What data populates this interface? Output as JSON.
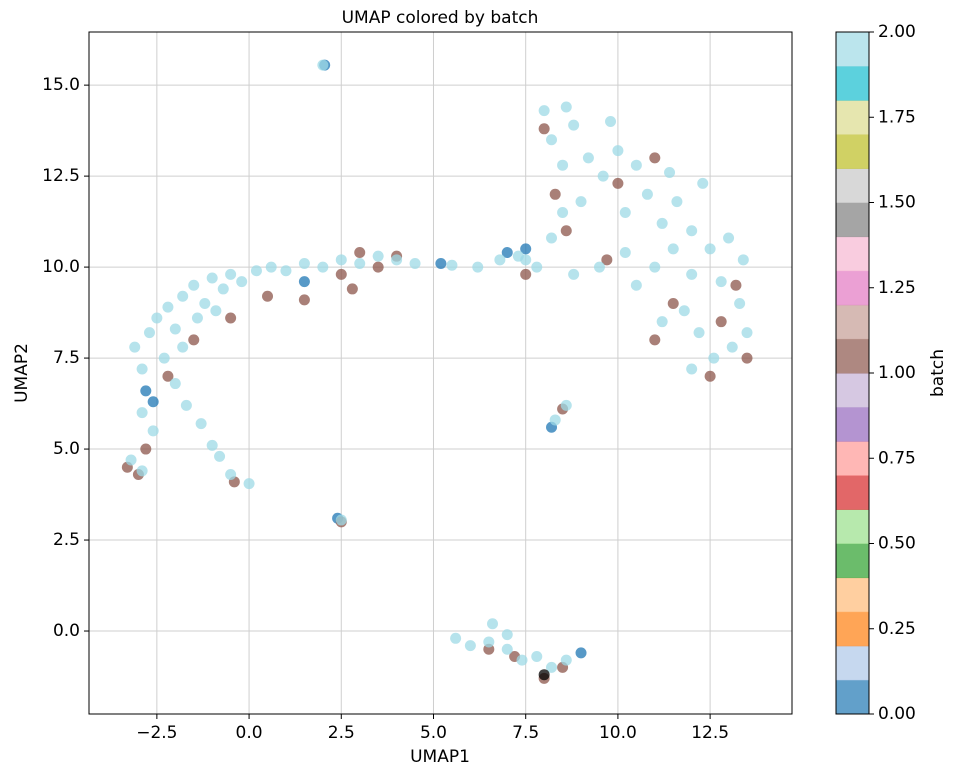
{
  "chart_data": {
    "type": "scatter",
    "title": "UMAP colored by batch",
    "xlabel": "UMAP1",
    "ylabel": "UMAP2",
    "xlim": [
      -4.34,
      14.72
    ],
    "ylim": [
      -2.28,
      16.46
    ],
    "xticks": [
      {
        "value": -2.5,
        "label": "−2.5"
      },
      {
        "value": 0,
        "label": "0.0"
      },
      2.5,
      {
        "value": 5,
        "label": "5.0"
      },
      7.5,
      {
        "value": 10,
        "label": "10.0"
      },
      12.5
    ],
    "yticks": [
      {
        "value": 0,
        "label": "0.0"
      },
      2.5,
      {
        "value": 5,
        "label": "5.0"
      },
      7.5,
      {
        "value": 10,
        "label": "10.0"
      },
      12.5,
      {
        "value": 15,
        "label": "15.0"
      }
    ],
    "grid": true,
    "colorbar": {
      "label": "batch",
      "clim": [
        0,
        2
      ],
      "ticks": [
        {
          "value": 0,
          "label": "0.00"
        },
        {
          "value": 0.25,
          "label": "0.25"
        },
        {
          "value": 0.5,
          "label": "0.50"
        },
        {
          "value": 0.75,
          "label": "0.75"
        },
        {
          "value": 1,
          "label": "1.00"
        },
        {
          "value": 1.25,
          "label": "1.25"
        },
        {
          "value": 1.5,
          "label": "1.50"
        },
        {
          "value": 1.75,
          "label": "1.75"
        },
        {
          "value": 2,
          "label": "2.00"
        }
      ],
      "colormap": [
        "#1f77b4",
        "#aec7e8",
        "#ff7f0e",
        "#ffbb78",
        "#2ca02c",
        "#98df8a",
        "#d62728",
        "#ff9896",
        "#9467bd",
        "#c5b0d5",
        "#8c564b",
        "#c49c94",
        "#e377c2",
        "#f7b6d2",
        "#7f7f7f",
        "#c7c7c7",
        "#bcbd22",
        "#dbdb8d",
        "#17becf",
        "#9edae5"
      ]
    },
    "x": [
      2.05,
      -2.8,
      -2.6,
      5.2,
      7.0,
      8.2,
      2.4,
      9.0,
      7.5,
      1.5,
      -3.3,
      -3.0,
      -2.8,
      -2.2,
      -1.5,
      -0.5,
      0.5,
      1.5,
      2.5,
      3.0,
      3.5,
      4.0,
      2.8,
      8.3,
      8.0,
      9.7,
      10.0,
      11.0,
      12.5,
      13.5,
      13.2,
      11.5,
      12.8,
      8.0,
      8.5,
      6.5,
      7.2,
      -0.4,
      2.5,
      8.5,
      7.5,
      8.6,
      11.0,
      -3.1,
      -2.9,
      -2.7,
      -2.5,
      -2.2,
      -2.0,
      -1.8,
      -1.5,
      -1.2,
      -1.0,
      -0.7,
      -0.5,
      -0.2,
      0.2,
      0.6,
      1.0,
      1.5,
      2.0,
      2.5,
      3.0,
      3.5,
      4.0,
      4.5,
      5.5,
      6.2,
      6.8,
      7.3,
      7.8,
      -2.9,
      -2.6,
      -2.3,
      -1.8,
      -1.4,
      -0.9,
      -2.0,
      -1.7,
      -1.3,
      -1.0,
      -0.8,
      -0.5,
      0.0,
      -3.2,
      -2.9,
      2.0,
      2.5,
      8.3,
      8.6,
      8.0,
      8.2,
      8.5,
      8.8,
      9.2,
      9.6,
      10.0,
      10.5,
      8.5,
      8.2,
      9.0,
      10.2,
      10.8,
      11.2,
      11.5,
      12.0,
      12.5,
      13.0,
      13.4,
      11.0,
      10.5,
      12.0,
      12.8,
      11.6,
      11.8,
      12.2,
      12.6,
      13.1,
      13.5,
      12.0,
      11.2,
      13.3,
      10.2,
      9.5,
      8.8,
      7.5,
      12.3,
      11.4,
      9.8,
      8.6,
      5.6,
      6.0,
      6.5,
      6.6,
      7.0,
      7.4,
      7.8,
      8.2,
      8.6,
      7.0,
      8.0
    ],
    "y": [
      15.55,
      6.6,
      6.3,
      10.1,
      10.4,
      5.6,
      3.1,
      -0.6,
      10.5,
      9.6,
      4.5,
      4.3,
      5.0,
      7.0,
      8.0,
      8.6,
      9.2,
      9.1,
      9.8,
      10.4,
      10.0,
      10.3,
      9.4,
      12.0,
      13.8,
      10.2,
      12.3,
      8.0,
      7.0,
      7.5,
      9.5,
      9.0,
      8.5,
      -1.3,
      -1.0,
      -0.5,
      -0.7,
      4.1,
      3.0,
      6.1,
      9.8,
      11.0,
      13.0,
      7.8,
      7.2,
      8.2,
      8.6,
      8.9,
      8.3,
      9.2,
      9.5,
      9.0,
      9.7,
      9.4,
      9.8,
      9.6,
      9.9,
      10.0,
      9.9,
      10.1,
      10.0,
      10.2,
      10.1,
      10.3,
      10.2,
      10.1,
      10.05,
      10.0,
      10.2,
      10.3,
      10.0,
      6.0,
      5.5,
      7.5,
      7.8,
      8.6,
      8.8,
      6.8,
      6.2,
      5.7,
      5.1,
      4.8,
      4.3,
      4.05,
      4.7,
      4.4,
      15.55,
      3.05,
      5.8,
      6.2,
      14.3,
      13.5,
      12.8,
      13.9,
      13.0,
      12.5,
      13.2,
      12.8,
      11.5,
      10.8,
      11.8,
      11.5,
      12.0,
      11.2,
      10.5,
      11.0,
      10.5,
      10.8,
      10.2,
      10.0,
      9.5,
      9.8,
      9.6,
      11.8,
      8.8,
      8.2,
      7.5,
      7.8,
      8.2,
      7.2,
      8.5,
      9.0,
      10.4,
      10.0,
      9.8,
      10.2,
      12.3,
      12.6,
      14.0,
      14.4,
      -0.2,
      -0.4,
      -0.3,
      0.2,
      -0.5,
      -0.8,
      -0.7,
      -1.0,
      -0.8,
      -0.1,
      -1.2
    ],
    "c": [
      0,
      0,
      0,
      0,
      0,
      0,
      0,
      0,
      0,
      0,
      1,
      1,
      1,
      1,
      1,
      1,
      1,
      1,
      1,
      1,
      1,
      1,
      1,
      1,
      1,
      1,
      1,
      1,
      1,
      1,
      1,
      1,
      1,
      1,
      1,
      1,
      1,
      1,
      1,
      1,
      1,
      1,
      1,
      2,
      2,
      2,
      2,
      2,
      2,
      2,
      2,
      2,
      2,
      2,
      2,
      2,
      2,
      2,
      2,
      2,
      2,
      2,
      2,
      2,
      2,
      2,
      2,
      2,
      2,
      2,
      2,
      2,
      2,
      2,
      2,
      2,
      2,
      2,
      2,
      2,
      2,
      2,
      2,
      2,
      2,
      2,
      2,
      2,
      2,
      2,
      2,
      2,
      2,
      2,
      2,
      2,
      2,
      2,
      2,
      2,
      2,
      2,
      2,
      2,
      2,
      2,
      2,
      2,
      2,
      2,
      2,
      2,
      2,
      2,
      2,
      2,
      2,
      2,
      2,
      2,
      2,
      2,
      2,
      2,
      2,
      2,
      2,
      2,
      2,
      2,
      2,
      2,
      2,
      2,
      2,
      2,
      2,
      2,
      2,
      2
    ]
  }
}
